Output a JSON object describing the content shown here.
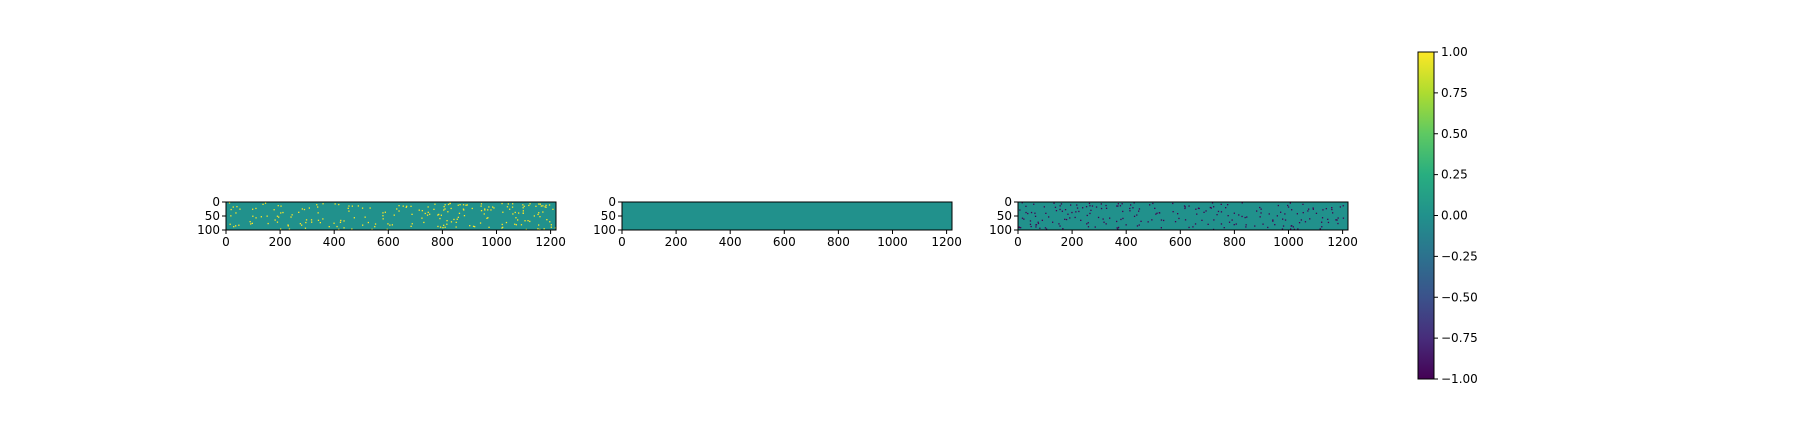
{
  "chart_data": [
    {
      "type": "heatmap",
      "xlim": [
        0,
        1220
      ],
      "ylim": [
        100,
        0
      ],
      "xticks": [
        0,
        200,
        400,
        600,
        800,
        1000,
        1200
      ],
      "yticks": [
        0,
        50,
        100
      ],
      "background_value": 0.0,
      "sparse_value": 1.0,
      "sparse_count": 220,
      "description_of_values": "mostly 0.0 with scattered cells at +1.0"
    },
    {
      "type": "heatmap",
      "xlim": [
        0,
        1220
      ],
      "ylim": [
        100,
        0
      ],
      "xticks": [
        0,
        200,
        400,
        600,
        800,
        1000,
        1200
      ],
      "yticks": [
        0,
        50,
        100
      ],
      "background_value": 0.0,
      "sparse_value": null,
      "sparse_count": 0,
      "description_of_values": "all 0.0"
    },
    {
      "type": "heatmap",
      "xlim": [
        0,
        1220
      ],
      "ylim": [
        100,
        0
      ],
      "xticks": [
        0,
        200,
        400,
        600,
        800,
        1000,
        1200
      ],
      "yticks": [
        0,
        50,
        100
      ],
      "background_value": 0.0,
      "sparse_value": -1.0,
      "sparse_count": 220,
      "description_of_values": "mostly 0.0 with scattered cells at -1.0"
    }
  ],
  "colorbar": {
    "colormap": "viridis",
    "range": [
      -1.0,
      1.0
    ],
    "ticks": [
      "1.00",
      "0.75",
      "0.50",
      "0.25",
      "0.00",
      "−0.25",
      "−0.50",
      "−0.75",
      "−1.00"
    ],
    "tick_values": [
      1.0,
      0.75,
      0.5,
      0.25,
      0.0,
      -0.25,
      -0.5,
      -0.75,
      -1.0
    ]
  },
  "colors": {
    "zero": "#21918c",
    "positive": "#fde725",
    "negative": "#440154"
  }
}
